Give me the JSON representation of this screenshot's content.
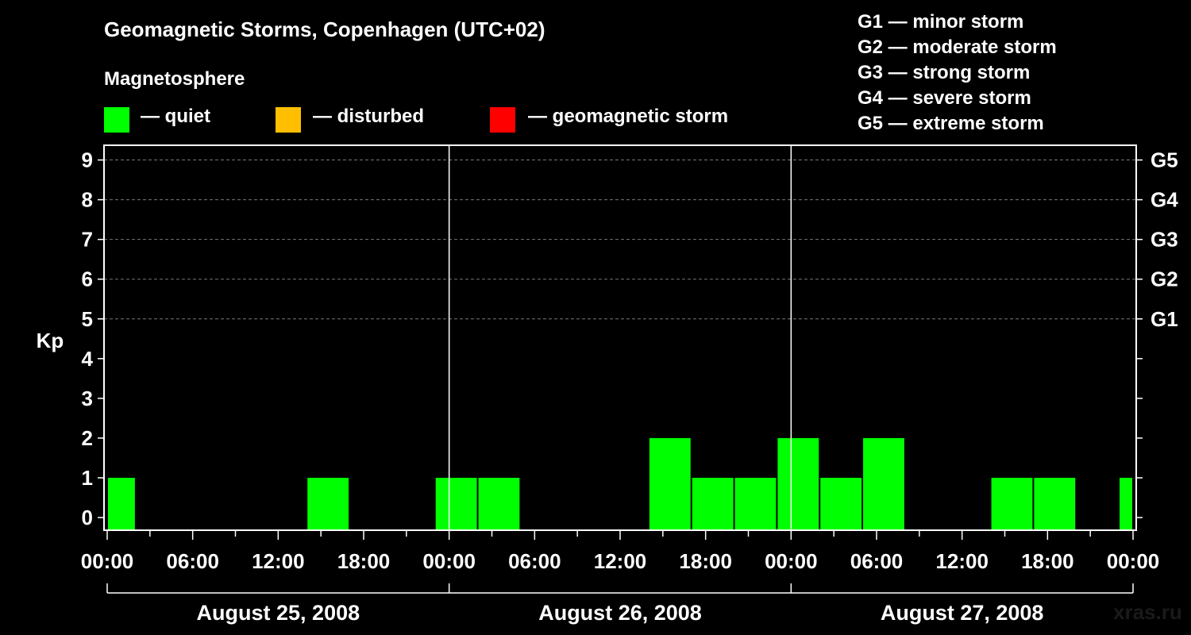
{
  "title": "Geomagnetic Storms, Copenhagen (UTC+02)",
  "subtitle": "Magnetosphere",
  "legend": [
    {
      "label": "— quiet",
      "color": "#00ff00"
    },
    {
      "label": "— disturbed",
      "color": "#ffbf00"
    },
    {
      "label": "— geomagnetic storm",
      "color": "#ff0000"
    }
  ],
  "storm_scale": [
    "G1 — minor storm",
    "G2 — moderate storm",
    "G3 — strong storm",
    "G4 — severe storm",
    "G5 — extreme storm"
  ],
  "watermark": "xras.ru",
  "chart_data": {
    "type": "bar",
    "title": "Geomagnetic Storms, Copenhagen (UTC+02)",
    "ylabel": "Kp",
    "ylim": [
      0,
      9
    ],
    "y_ticks": [
      "0",
      "1",
      "2",
      "3",
      "4",
      "5",
      "6",
      "7",
      "8",
      "9"
    ],
    "right_axis_labels": [
      {
        "kp": 5,
        "label": "G1"
      },
      {
        "kp": 6,
        "label": "G2"
      },
      {
        "kp": 7,
        "label": "G3"
      },
      {
        "kp": 8,
        "label": "G4"
      },
      {
        "kp": 9,
        "label": "G5"
      }
    ],
    "x_range_hours": [
      0,
      72
    ],
    "x_tick_labels": [
      "00:00",
      "06:00",
      "12:00",
      "18:00",
      "00:00",
      "06:00",
      "12:00",
      "18:00",
      "00:00",
      "06:00",
      "12:00",
      "18:00",
      "00:00"
    ],
    "days": [
      "August 25, 2008",
      "August 26, 2008",
      "August 27, 2008"
    ],
    "series": [
      {
        "name": "Kp",
        "bars": [
          {
            "start_hour": 0,
            "end_hour": 2,
            "kp": 1,
            "status": "quiet"
          },
          {
            "start_hour": 14,
            "end_hour": 17,
            "kp": 1,
            "status": "quiet"
          },
          {
            "start_hour": 23,
            "end_hour": 26,
            "kp": 1,
            "status": "quiet"
          },
          {
            "start_hour": 26,
            "end_hour": 29,
            "kp": 1,
            "status": "quiet"
          },
          {
            "start_hour": 38,
            "end_hour": 41,
            "kp": 2,
            "status": "quiet"
          },
          {
            "start_hour": 41,
            "end_hour": 44,
            "kp": 1,
            "status": "quiet"
          },
          {
            "start_hour": 44,
            "end_hour": 47,
            "kp": 1,
            "status": "quiet"
          },
          {
            "start_hour": 47,
            "end_hour": 50,
            "kp": 2,
            "status": "quiet"
          },
          {
            "start_hour": 50,
            "end_hour": 53,
            "kp": 1,
            "status": "quiet"
          },
          {
            "start_hour": 53,
            "end_hour": 56,
            "kp": 2,
            "status": "quiet"
          },
          {
            "start_hour": 62,
            "end_hour": 65,
            "kp": 1,
            "status": "quiet"
          },
          {
            "start_hour": 65,
            "end_hour": 68,
            "kp": 1,
            "status": "quiet"
          },
          {
            "start_hour": 71,
            "end_hour": 72,
            "kp": 1,
            "status": "quiet"
          }
        ]
      }
    ]
  }
}
